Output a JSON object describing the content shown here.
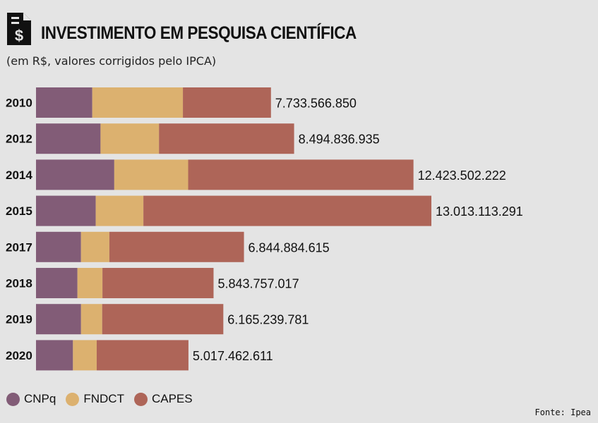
{
  "header": {
    "title": "INVESTIMENTO EM PESQUISA CIENTÍFICA",
    "subtitle": "(em R$, valores corrigidos pelo IPCA)",
    "icon": "document-dollar-icon"
  },
  "source": "Fonte: Ipea",
  "chart_data": {
    "type": "bar",
    "orientation": "horizontal",
    "stacked": true,
    "title": "INVESTIMENTO EM PESQUISA CIENTÍFICA",
    "subtitle": "(em R$, valores corrigidos pelo IPCA)",
    "categories": [
      "2010",
      "2012",
      "2014",
      "2015",
      "2017",
      "2018",
      "2019",
      "2020"
    ],
    "series": [
      {
        "name": "CNPq",
        "color": "#825c77",
        "values": [
          1852000000,
          2124000000,
          2576000000,
          1966000000,
          1481000000,
          1364000000,
          1482000000,
          1216000000
        ]
      },
      {
        "name": "FNDCT",
        "color": "#dcb16f",
        "values": [
          2983000000,
          1924000000,
          2432000000,
          1569000000,
          934000000,
          823000000,
          696000000,
          782000000
        ]
      },
      {
        "name": "CAPES",
        "color": "#ae6558",
        "values": [
          2898566850,
          4446836935,
          7415502222,
          9478113291,
          4429884615,
          3656757017,
          3987239781,
          3019462611
        ]
      }
    ],
    "totals": [
      "7.733.566.850",
      "8.494.836.935",
      "12.423.502.222",
      "13.013.113.291",
      "6.844.884.615",
      "5.843.757.017",
      "6.165.239.781",
      "5.017.462.611"
    ],
    "xlim": [
      0,
      13013113291
    ],
    "grid": false,
    "legend": "bottom-left"
  }
}
